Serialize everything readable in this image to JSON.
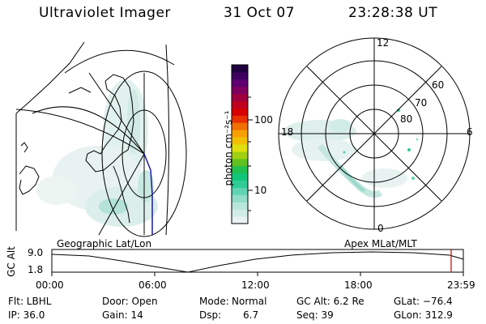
{
  "header": {
    "instrument": "Ultraviolet Imager",
    "date": "31 Oct 07",
    "time": "23:28:38 UT"
  },
  "colorbar": {
    "unit_label": "photon cm⁻²s⁻¹",
    "ticks": [
      "100",
      "10"
    ],
    "colors": [
      "#e8f2f0",
      "#d0ece6",
      "#b8e6da",
      "#90dcc8",
      "#60d4b2",
      "#30cc98",
      "#10c67a",
      "#20c050",
      "#60c020",
      "#a0d010",
      "#e0e010",
      "#f0c000",
      "#f8a000",
      "#f07000",
      "#e83000",
      "#d80000",
      "#c00020",
      "#a00040",
      "#800060",
      "#600070",
      "#400060",
      "#200040"
    ]
  },
  "left_panel": {
    "label": "Geographic Lat/Lon"
  },
  "right_panel": {
    "label": "Apex MLat/MLT",
    "mlt_labels": {
      "top": "12",
      "left": "18",
      "right": "6",
      "bottom": "0"
    },
    "lat_labels": [
      "60",
      "70",
      "80"
    ]
  },
  "timeline": {
    "ylabel": "GC Alt",
    "y_ticks": [
      "9.0",
      "1.8"
    ],
    "x_ticks": [
      "00:00",
      "06:00",
      "12:00",
      "18:00",
      "23:59"
    ],
    "marker_color": "#cc0000"
  },
  "info": {
    "flt": "Flt: LBHL",
    "ip": "IP: 36.0",
    "door": "Door: Open",
    "gain": "Gain: 14",
    "mode_label": "Mode:",
    "mode_value": "Normal",
    "dsp_label": "Dsp:",
    "dsp_value": "6.7",
    "gcalt": "GC Alt: 6.2 Re",
    "seq": "Seq: 39",
    "glat": "GLat: −76.4",
    "glon": "GLon: 312.9"
  }
}
